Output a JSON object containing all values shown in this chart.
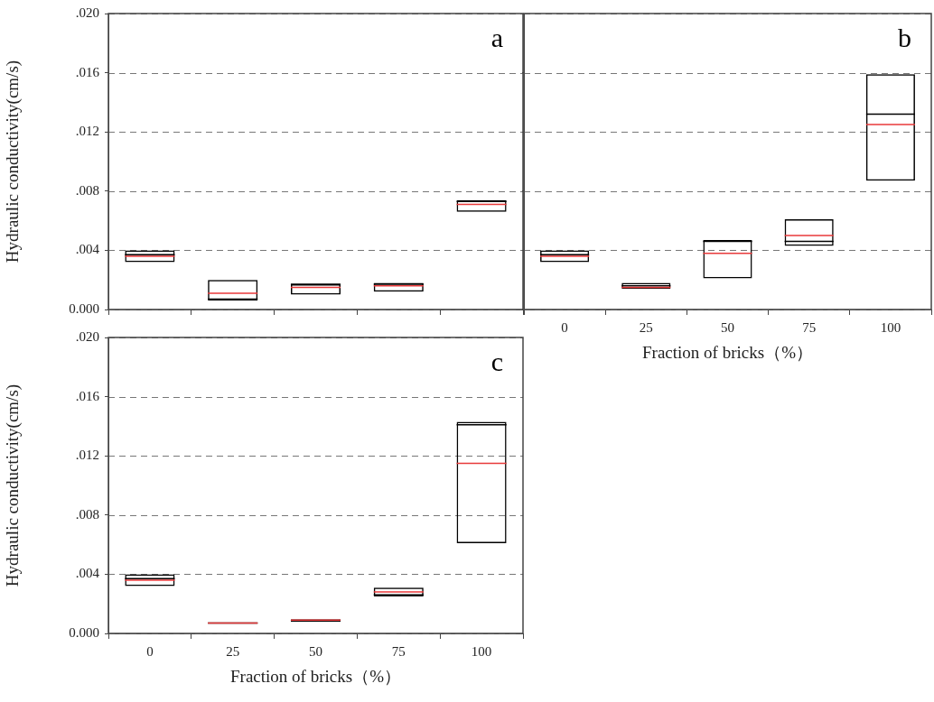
{
  "chart_data": [
    {
      "type": "box",
      "ylabel": "Hydraulic conductivity(cm/s)",
      "annotations": [
        "a"
      ],
      "tick_labels": "y",
      "grid": "y",
      "color": "#000000",
      "categories": [
        "0",
        "25",
        "50",
        "75",
        "100"
      ],
      "boxes": [
        {
          "q1": 0.0032,
          "median": 0.0037,
          "q3": 0.004,
          "mean": 0.0036
        },
        {
          "q1": 0.0006,
          "median": 0.0007,
          "q3": 0.002,
          "mean": 0.0011
        },
        {
          "q1": 0.001,
          "median": 0.0017,
          "q3": 0.0017,
          "mean": 0.0015
        },
        {
          "q1": 0.0012,
          "median": 0.0017,
          "q3": 0.0018,
          "mean": 0.0016
        },
        {
          "q1": 0.0066,
          "median": 0.0073,
          "q3": 0.0074,
          "mean": 0.0071
        }
      ],
      "ylim": [
        0,
        0.02
      ],
      "yticks": [
        {
          "value": 0,
          "label": "0.000"
        },
        {
          "value": 0.004,
          "label": ".004"
        },
        {
          "value": 0.008,
          "label": ".008"
        },
        {
          "value": 0.012,
          "label": ".012"
        },
        {
          "value": 0.016,
          "label": ".016"
        },
        {
          "value": 0.02,
          "label": ".020"
        }
      ]
    },
    {
      "type": "box",
      "xlabel": "Fraction of bricks（%）",
      "annotations": [
        "b"
      ],
      "tick_labels": "x",
      "grid": "y",
      "color": "#000000",
      "categories": [
        "0",
        "25",
        "50",
        "75",
        "100"
      ],
      "boxes": [
        {
          "q1": 0.0032,
          "median": 0.0037,
          "q3": 0.004,
          "mean": 0.0036
        },
        {
          "q1": 0.0014,
          "median": 0.0016,
          "q3": 0.0018,
          "mean": 0.0015
        },
        {
          "q1": 0.0021,
          "median": 0.0046,
          "q3": 0.0047,
          "mean": 0.0038
        },
        {
          "q1": 0.0043,
          "median": 0.0046,
          "q3": 0.0061,
          "mean": 0.005
        },
        {
          "q1": 0.0087,
          "median": 0.0132,
          "q3": 0.0159,
          "mean": 0.0125
        }
      ],
      "ylim": [
        0,
        0.02
      ],
      "yticks": [
        {
          "value": 0,
          "label": null
        },
        {
          "value": 0.004,
          "label": null
        },
        {
          "value": 0.008,
          "label": null
        },
        {
          "value": 0.012,
          "label": null
        },
        {
          "value": 0.016,
          "label": null
        },
        {
          "value": 0.02,
          "label": null
        }
      ]
    },
    {
      "type": "box",
      "ylabel": "Hydraulic conductivity(cm/s)",
      "xlabel": "Fraction of bricks（%）",
      "annotations": [
        "c"
      ],
      "grid": "y",
      "color": "#000000",
      "categories": [
        "0",
        "25",
        "50",
        "75",
        "100"
      ],
      "boxes": [
        {
          "q1": 0.0032,
          "median": 0.0037,
          "q3": 0.004,
          "mean": 0.0036
        },
        {
          "q1": 0.0007,
          "median": 0.0007,
          "q3": 0.0007,
          "mean": 0.0007
        },
        {
          "q1": 0.0008,
          "median": 0.0009,
          "q3": 0.0009,
          "mean": 0.0009
        },
        {
          "q1": 0.0025,
          "median": 0.0026,
          "q3": 0.0031,
          "mean": 0.0028
        },
        {
          "q1": 0.0061,
          "median": 0.0141,
          "q3": 0.0143,
          "mean": 0.0115
        }
      ],
      "ylim": [
        0,
        0.02
      ],
      "yticks": [
        {
          "value": 0,
          "label": "0.000"
        },
        {
          "value": 0.004,
          "label": ".004"
        },
        {
          "value": 0.008,
          "label": ".008"
        },
        {
          "value": 0.012,
          "label": ".012"
        },
        {
          "value": 0.016,
          "label": ".016"
        },
        {
          "value": 0.02,
          "label": ".020"
        }
      ]
    }
  ]
}
